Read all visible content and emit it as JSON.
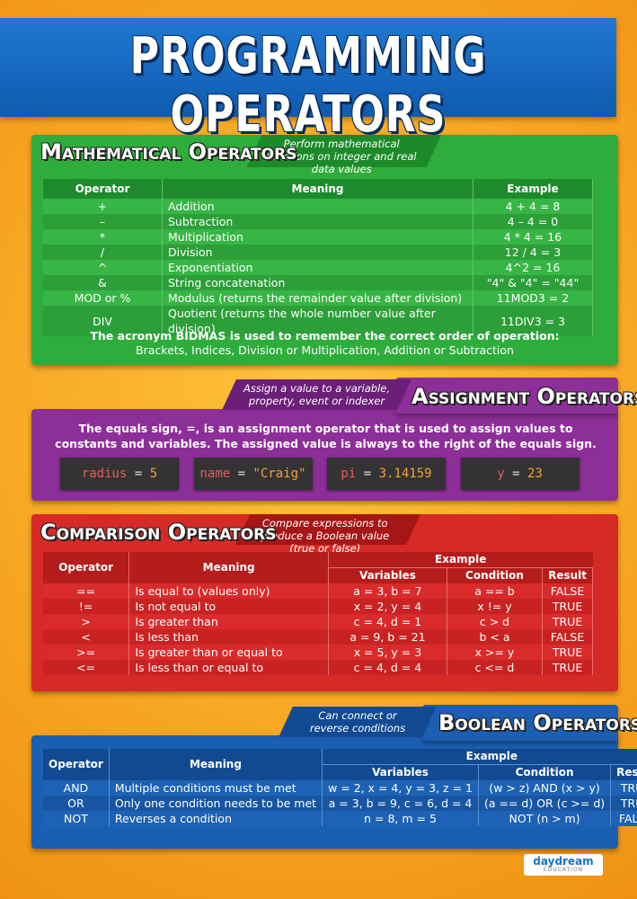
{
  "title": "Programming Operators",
  "math": {
    "heading": "Mathematical Operators",
    "tagline": "Perform mathematical functions on integer and real data values",
    "columns": [
      "Operator",
      "Meaning",
      "Example"
    ],
    "rows": [
      [
        "+",
        "Addition",
        "4 + 4 = 8"
      ],
      [
        "–",
        "Subtraction",
        "4 – 4 = 0"
      ],
      [
        "*",
        "Multiplication",
        "4 * 4 = 16"
      ],
      [
        "/",
        "Division",
        "12 / 4 = 3"
      ],
      [
        "^",
        "Exponentiation",
        "4^2 = 16"
      ],
      [
        "&",
        "String concatenation",
        "\"4\" & \"4\" = \"44\""
      ],
      [
        "MOD or %",
        "Modulus (returns the remainder value after division)",
        "11MOD3 = 2"
      ],
      [
        "DIV",
        "Quotient (returns the whole number value after division)",
        "11DIV3 = 3"
      ]
    ],
    "note_start": "The acronym",
    "note_bold": "BIDMAS",
    "note_end": "is used to remember the correct order of operation:",
    "note_detail": "Brackets, Indices, Division or Multiplication, Addition or Subtraction"
  },
  "assignment": {
    "heading": "Assignment Operators",
    "tagline": "Assign a value to a variable, property, event or indexer",
    "text": "The equals sign, =, is an assignment operator that is used to assign values to constants and variables. The assigned value is always to the right of the equals sign.",
    "examples": [
      {
        "name": "radius",
        "op": "=",
        "value": "5"
      },
      {
        "name": "name",
        "op": "=",
        "value": "\"Craig\""
      },
      {
        "name": "pi",
        "op": "=",
        "value": "3.14159"
      },
      {
        "name": "y",
        "op": "=",
        "value": "23"
      }
    ]
  },
  "comparison": {
    "heading": "Comparison Operators",
    "tagline": "Compare expressions to produce a Boolean value (true or false)",
    "columns": [
      "Operator",
      "Meaning"
    ],
    "example_heading": "Example",
    "subcolumns": [
      "Variables",
      "Condition",
      "Result"
    ],
    "rows": [
      [
        "==",
        "Is equal to (values only)",
        "a = 3, b = 7",
        "a == b",
        "FALSE"
      ],
      [
        "!=",
        "Is not equal to",
        "x = 2, y = 4",
        "x != y",
        "TRUE"
      ],
      [
        ">",
        "Is greater than",
        "c = 4, d = 1",
        "c > d",
        "TRUE"
      ],
      [
        "<",
        "Is less than",
        "a = 9, b = 21",
        "b < a",
        "FALSE"
      ],
      [
        ">=",
        "Is greater than or equal to",
        "x = 5, y = 3",
        "x >= y",
        "TRUE"
      ],
      [
        "<=",
        "Is less than or equal to",
        "c = 4, d = 4",
        "c <= d",
        "TRUE"
      ]
    ]
  },
  "boolean": {
    "heading": "Boolean Operators",
    "tagline": "Can connect or reverse conditions",
    "columns": [
      "Operator",
      "Meaning"
    ],
    "example_heading": "Example",
    "subcolumns": [
      "Variables",
      "Condition",
      "Result"
    ],
    "rows": [
      [
        "AND",
        "Multiple conditions must be met",
        "w = 2, x = 4, y = 3, z = 1",
        "(w > z) AND (x > y)",
        "TRUE"
      ],
      [
        "OR",
        "Only one condition needs to be met",
        "a = 3, b = 9, c = 6, d = 4",
        "(a == d) OR (c >= d)",
        "TRUE"
      ],
      [
        "NOT",
        "Reverses a condition",
        "n = 8, m = 5",
        "NOT (n > m)",
        "FALSE"
      ]
    ]
  },
  "logo": {
    "name": "daydream",
    "sub": "EDUCATION"
  }
}
